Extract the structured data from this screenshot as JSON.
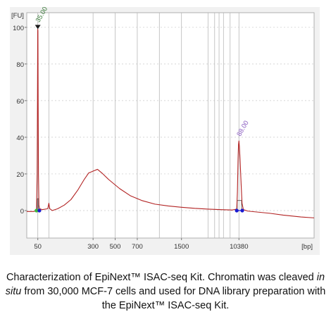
{
  "chart_data": {
    "type": "line",
    "y_unit_label": "[FU]",
    "x_unit_label": "[bp]",
    "ylim": [
      -15,
      108
    ],
    "y_ticks": [
      0,
      20,
      40,
      60,
      80,
      100
    ],
    "x_tick_labels": [
      "50",
      "300",
      "500",
      "700",
      "1500",
      "10380"
    ],
    "grid": "vertical lines at size-ladder positions",
    "series": [
      {
        "color": "#b22222",
        "points": [
          [
            0,
            -0.5
          ],
          [
            30,
            -0.5
          ],
          [
            40,
            -0.3
          ],
          [
            44,
            0
          ],
          [
            47,
            20
          ],
          [
            48.5,
            60
          ],
          [
            49.5,
            98
          ],
          [
            50,
            99
          ],
          [
            50.5,
            98
          ],
          [
            51.5,
            60
          ],
          [
            53,
            20
          ],
          [
            55,
            3
          ],
          [
            58,
            1
          ],
          [
            70,
            0.5
          ],
          [
            95,
            1
          ],
          [
            100,
            4
          ],
          [
            104,
            1
          ],
          [
            115,
            0
          ],
          [
            140,
            1
          ],
          [
            170,
            3
          ],
          [
            200,
            6
          ],
          [
            230,
            11
          ],
          [
            260,
            17
          ],
          [
            280,
            20.5
          ],
          [
            300,
            21.5
          ],
          [
            320,
            22.5
          ],
          [
            340,
            20.5
          ],
          [
            370,
            17
          ],
          [
            420,
            12
          ],
          [
            470,
            8
          ],
          [
            520,
            5.5
          ],
          [
            580,
            3.5
          ],
          [
            640,
            2.5
          ],
          [
            700,
            1.8
          ],
          [
            760,
            1.2
          ],
          [
            820,
            0.8
          ],
          [
            880,
            0.5
          ],
          [
            930,
            0.3
          ],
          [
            950,
            0.8
          ],
          [
            953,
            10
          ],
          [
            956,
            28
          ],
          [
            958,
            36
          ],
          [
            960,
            38
          ],
          [
            962,
            35
          ],
          [
            965,
            28
          ],
          [
            970,
            14
          ],
          [
            974,
            4
          ],
          [
            980,
            0.5
          ],
          [
            1000,
            -0.3
          ],
          [
            1100,
            -1.5
          ],
          [
            1160,
            -2.5
          ],
          [
            1240,
            -3.5
          ],
          [
            1300,
            -4
          ]
        ]
      }
    ],
    "ladder_x": [
      50,
      100,
      300,
      400,
      500,
      600,
      700,
      820,
      850,
      870,
      890,
      920,
      960
    ],
    "peak_labels": [
      {
        "text": "35.00",
        "x": 50,
        "y": 99,
        "color": "#3a7a3a"
      },
      {
        "text": "88.00",
        "x": 960,
        "y": 38,
        "color": "#8a5cc0"
      }
    ],
    "markers": [
      {
        "x": 44,
        "y": 0,
        "color": "#3cb83c"
      },
      {
        "x": 57,
        "y": 0,
        "color": "#1a1ad0"
      },
      {
        "x": 950,
        "y": 0,
        "color": "#1a1ad0"
      },
      {
        "x": 975,
        "y": 0,
        "color": "#1a1ad0"
      }
    ],
    "baselines": [
      {
        "x1": 44,
        "x2": 57,
        "color": "#1a1ad0"
      },
      {
        "x1": 950,
        "x2": 975,
        "color": "#1a1ad0"
      }
    ],
    "bands": [
      {
        "x1": 48,
        "x2": 53,
        "y": 6.5
      },
      {
        "x1": 952,
        "x2": 972,
        "y": 5.5
      }
    ]
  },
  "caption": {
    "part1": "Characterization of EpiNext™ ISAC-seq Kit. Chromatin was cleaved ",
    "italic": "in situ",
    "part2": " from 30,000 MCF-7 cells and used for DNA library preparation with the EpiNext™ ISAC-seq Kit."
  }
}
